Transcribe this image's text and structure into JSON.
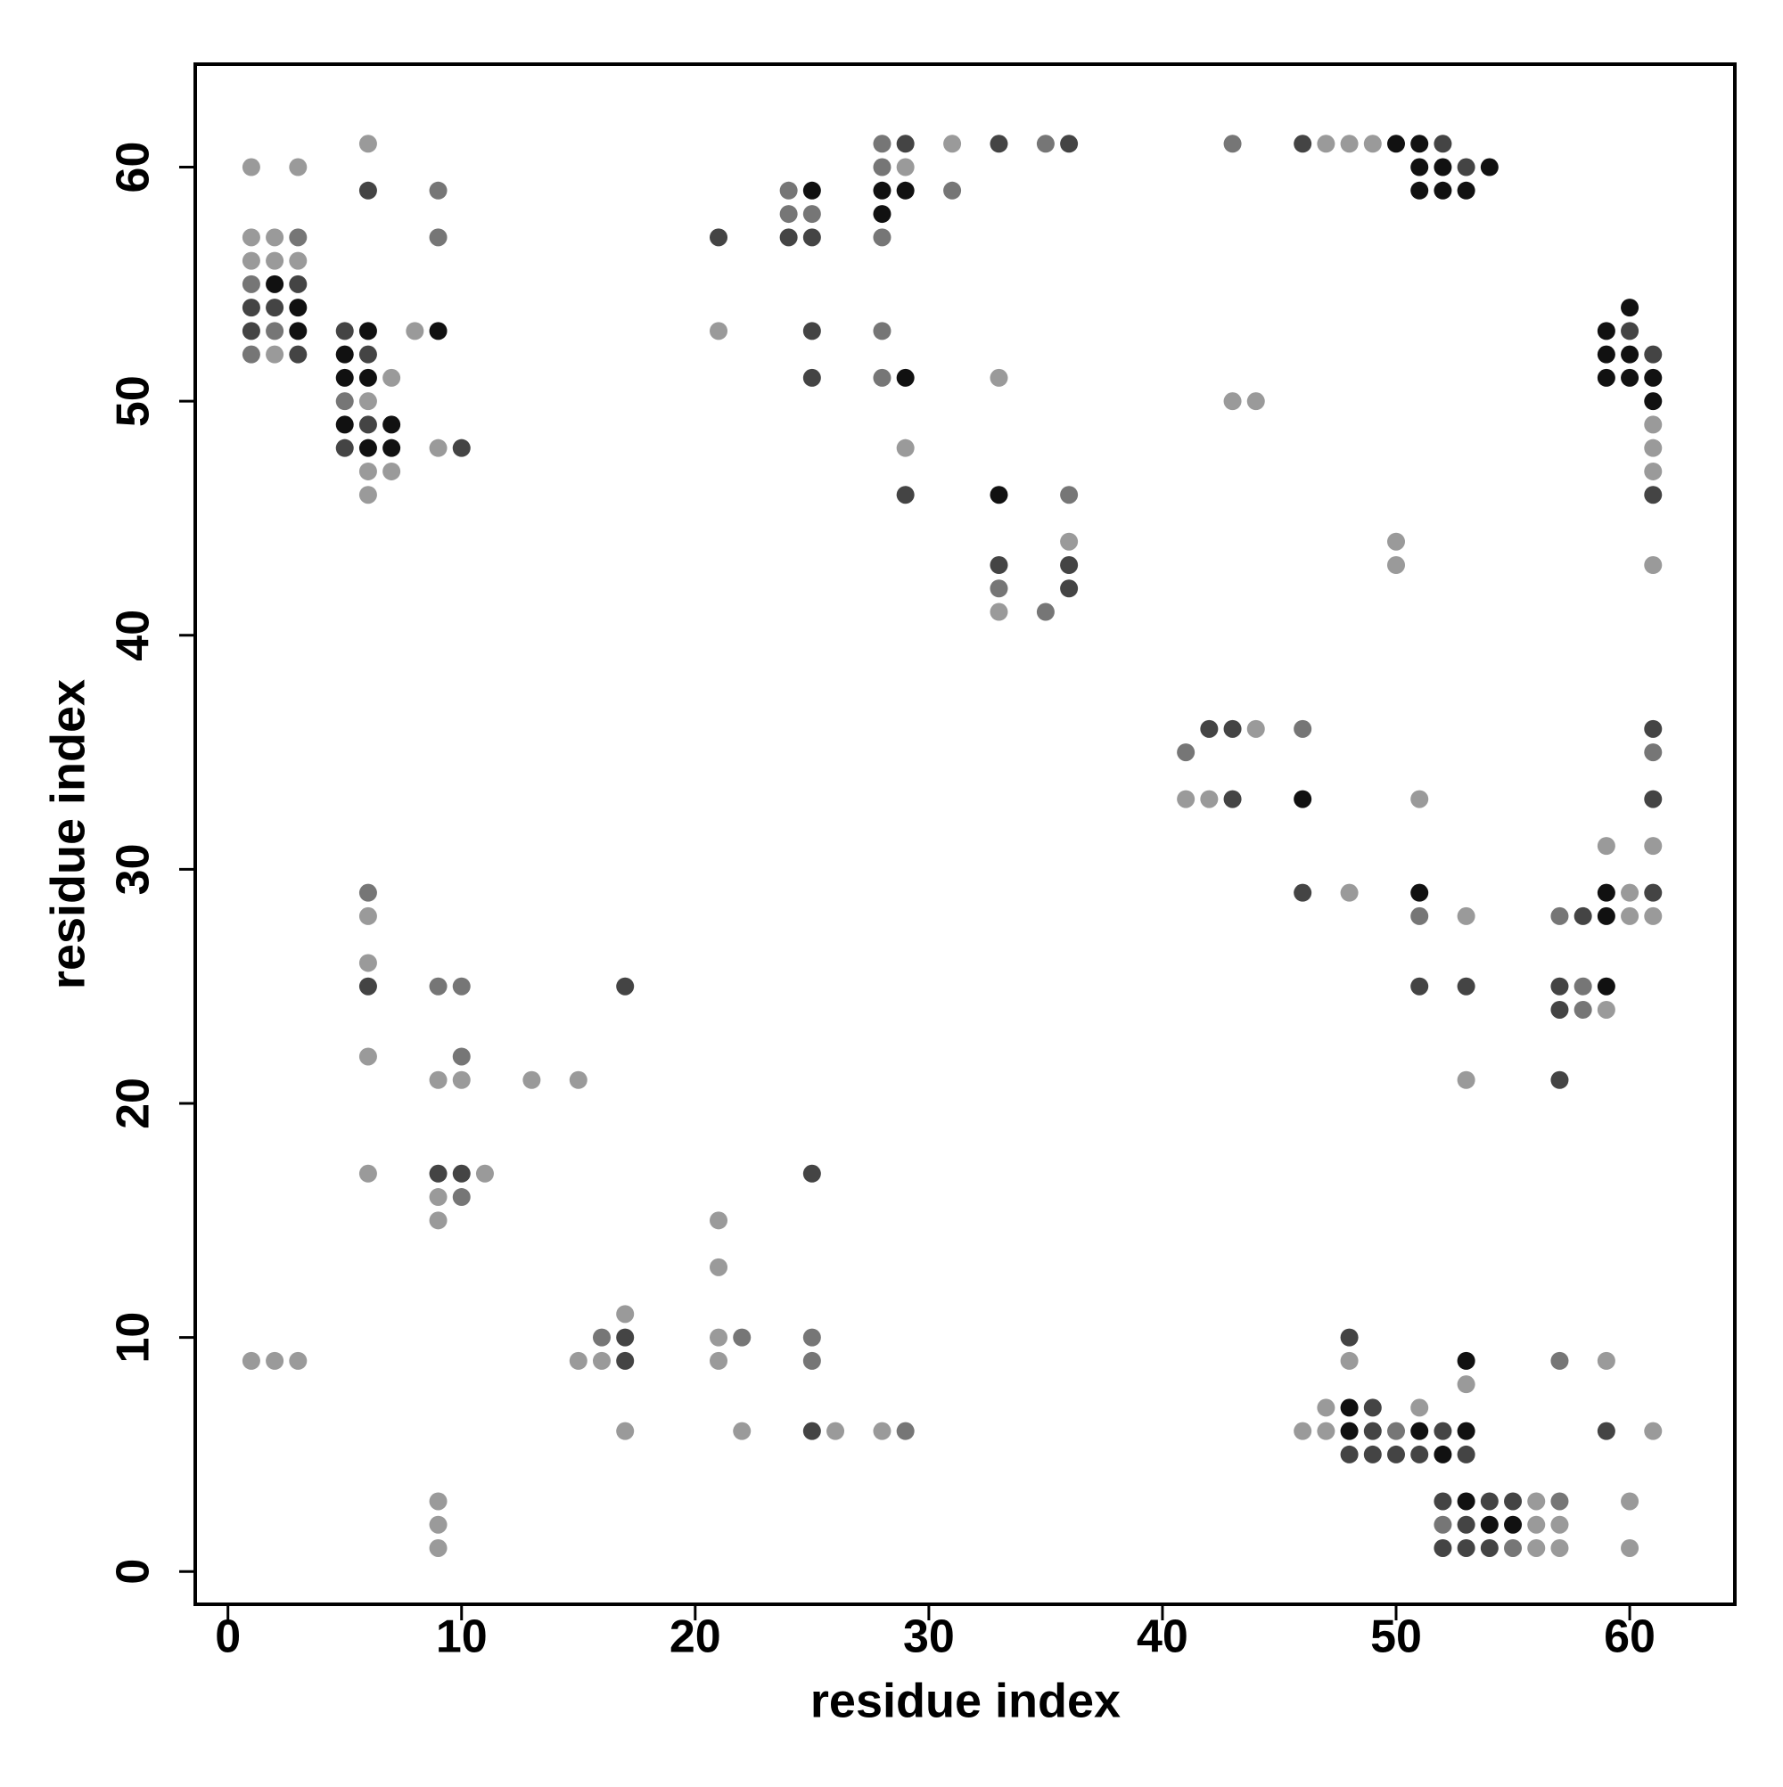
{
  "chart_data": {
    "type": "scatter",
    "x_label": "residue index",
    "y_label": "residue index",
    "xlim": [
      -1.4,
      64.5
    ],
    "ylim": [
      -1.4,
      64.4
    ],
    "xticks": [
      0,
      10,
      20,
      30,
      40,
      50,
      60
    ],
    "yticks": [
      0,
      10,
      20,
      30,
      40,
      50,
      60
    ],
    "series": [
      {
        "color": "#9a9a9a",
        "x": [
          6,
          31,
          47,
          48,
          49,
          1,
          3,
          29,
          1,
          2,
          1,
          2,
          3,
          2,
          8,
          21,
          7,
          33,
          6,
          43,
          44,
          61,
          9,
          29,
          61,
          6,
          7,
          61,
          6,
          36,
          50,
          50,
          61,
          33,
          44,
          41,
          42,
          51,
          59,
          61,
          48,
          60,
          6,
          53,
          60,
          61,
          6,
          59,
          6,
          9,
          10,
          13,
          15,
          53,
          6,
          11,
          9,
          9,
          21,
          21,
          17,
          21,
          1,
          2,
          3,
          15,
          16,
          21,
          48,
          59,
          53,
          47,
          51,
          17,
          22,
          26,
          28,
          46,
          47,
          61,
          9,
          56,
          60,
          9,
          56,
          57,
          9,
          56,
          57,
          60
        ],
        "values": [
          61,
          61,
          61,
          61,
          61,
          60,
          60,
          60,
          57,
          57,
          56,
          56,
          56,
          52,
          53,
          53,
          51,
          51,
          50,
          50,
          50,
          49,
          48,
          48,
          48,
          47,
          47,
          47,
          46,
          44,
          44,
          43,
          43,
          41,
          36,
          33,
          33,
          33,
          31,
          31,
          29,
          29,
          28,
          28,
          28,
          28,
          26,
          24,
          22,
          21,
          21,
          21,
          21,
          21,
          17,
          17,
          16,
          15,
          15,
          13,
          11,
          10,
          9,
          9,
          9,
          9,
          9,
          9,
          9,
          9,
          8,
          7,
          7,
          6,
          6,
          6,
          6,
          6,
          6,
          6,
          3,
          3,
          3,
          2,
          2,
          2,
          1,
          1,
          1,
          1
        ]
      },
      {
        "color": "#767676",
        "x": [
          28,
          35,
          43,
          28,
          9,
          24,
          31,
          24,
          25,
          3,
          9,
          28,
          1,
          2,
          28,
          1,
          28,
          5,
          36,
          33,
          35,
          46,
          41,
          61,
          6,
          51,
          57,
          9,
          10,
          58,
          58,
          10,
          10,
          16,
          22,
          25,
          25,
          57,
          29,
          50,
          52,
          57,
          55
        ],
        "values": [
          61,
          61,
          61,
          60,
          59,
          59,
          59,
          58,
          58,
          57,
          57,
          57,
          55,
          53,
          53,
          52,
          51,
          50,
          46,
          42,
          41,
          36,
          35,
          35,
          29,
          28,
          28,
          25,
          25,
          25,
          24,
          22,
          16,
          10,
          10,
          10,
          9,
          9,
          6,
          6,
          2,
          3,
          1
        ]
      },
      {
        "color": "#444444",
        "x": [
          29,
          33,
          36,
          46,
          52,
          53,
          6,
          21,
          24,
          25,
          3,
          1,
          2,
          1,
          5,
          25,
          60,
          3,
          6,
          61,
          25,
          6,
          5,
          10,
          29,
          61,
          33,
          36,
          36,
          42,
          43,
          61,
          43,
          61,
          46,
          61,
          58,
          6,
          17,
          51,
          53,
          57,
          57,
          57,
          9,
          10,
          25,
          17,
          48,
          17,
          49,
          25,
          49,
          52,
          59,
          48,
          49,
          50,
          51,
          53,
          52,
          54,
          55,
          53,
          52,
          53,
          54
        ],
        "values": [
          61,
          61,
          61,
          61,
          61,
          60,
          59,
          57,
          57,
          57,
          55,
          54,
          54,
          53,
          53,
          53,
          53,
          52,
          52,
          52,
          51,
          49,
          48,
          48,
          46,
          46,
          43,
          43,
          42,
          36,
          36,
          36,
          33,
          33,
          29,
          29,
          28,
          25,
          25,
          25,
          25,
          25,
          24,
          21,
          17,
          17,
          17,
          10,
          10,
          9,
          7,
          6,
          6,
          6,
          6,
          5,
          5,
          5,
          5,
          5,
          3,
          3,
          3,
          2,
          1,
          1,
          1
        ]
      },
      {
        "color": "#111111",
        "x": [
          50,
          51,
          51,
          52,
          54,
          25,
          28,
          29,
          51,
          52,
          53,
          28,
          2,
          3,
          60,
          3,
          6,
          9,
          59,
          5,
          59,
          60,
          5,
          6,
          29,
          59,
          60,
          61,
          61,
          5,
          7,
          6,
          7,
          33,
          46,
          51,
          59,
          59,
          59,
          53,
          48,
          48,
          51,
          53,
          52,
          53,
          54,
          55
        ],
        "values": [
          61,
          61,
          60,
          60,
          60,
          59,
          59,
          59,
          59,
          59,
          59,
          58,
          55,
          54,
          54,
          53,
          53,
          53,
          53,
          52,
          52,
          52,
          51,
          51,
          51,
          51,
          51,
          51,
          50,
          49,
          49,
          48,
          48,
          46,
          33,
          29,
          29,
          28,
          25,
          9,
          7,
          6,
          6,
          6,
          5,
          3,
          2,
          2
        ]
      }
    ]
  }
}
